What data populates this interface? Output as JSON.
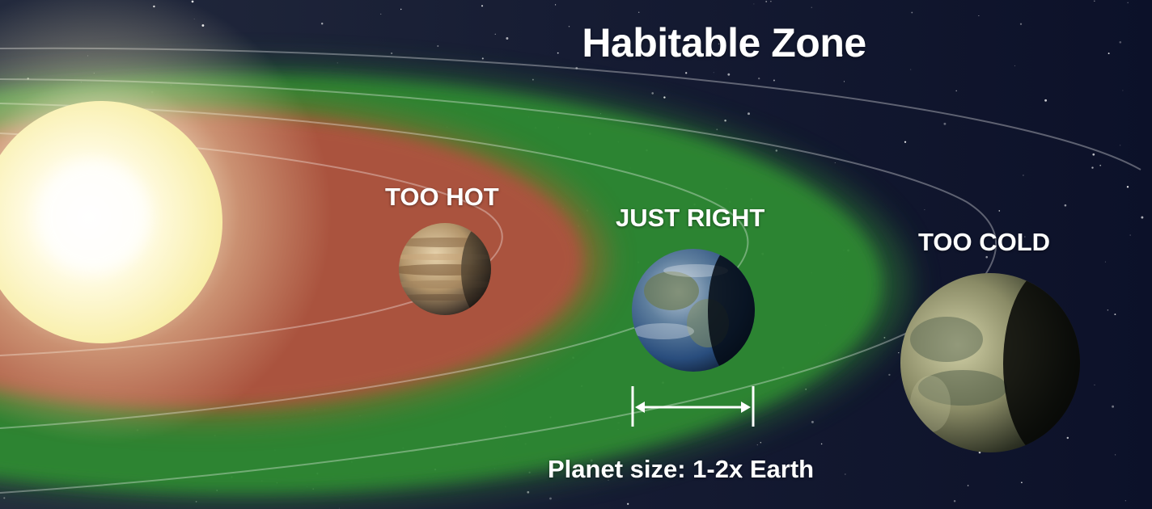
{
  "title": "Habitable Zone",
  "zones": {
    "hot": "TOO HOT",
    "just_right": "JUST RIGHT",
    "cold": "TOO COLD"
  },
  "size_note": "Planet size: 1-2x Earth",
  "colors": {
    "space": "#0b0f1e",
    "habitable_zone": "#2e8b2e",
    "hot_zone": "#b5523f",
    "star": "#fff8c8",
    "label": "#ffffff"
  },
  "icons": [
    "star-icon",
    "gas-giant-icon",
    "earth-icon",
    "cold-planet-icon",
    "size-bracket-icon"
  ]
}
